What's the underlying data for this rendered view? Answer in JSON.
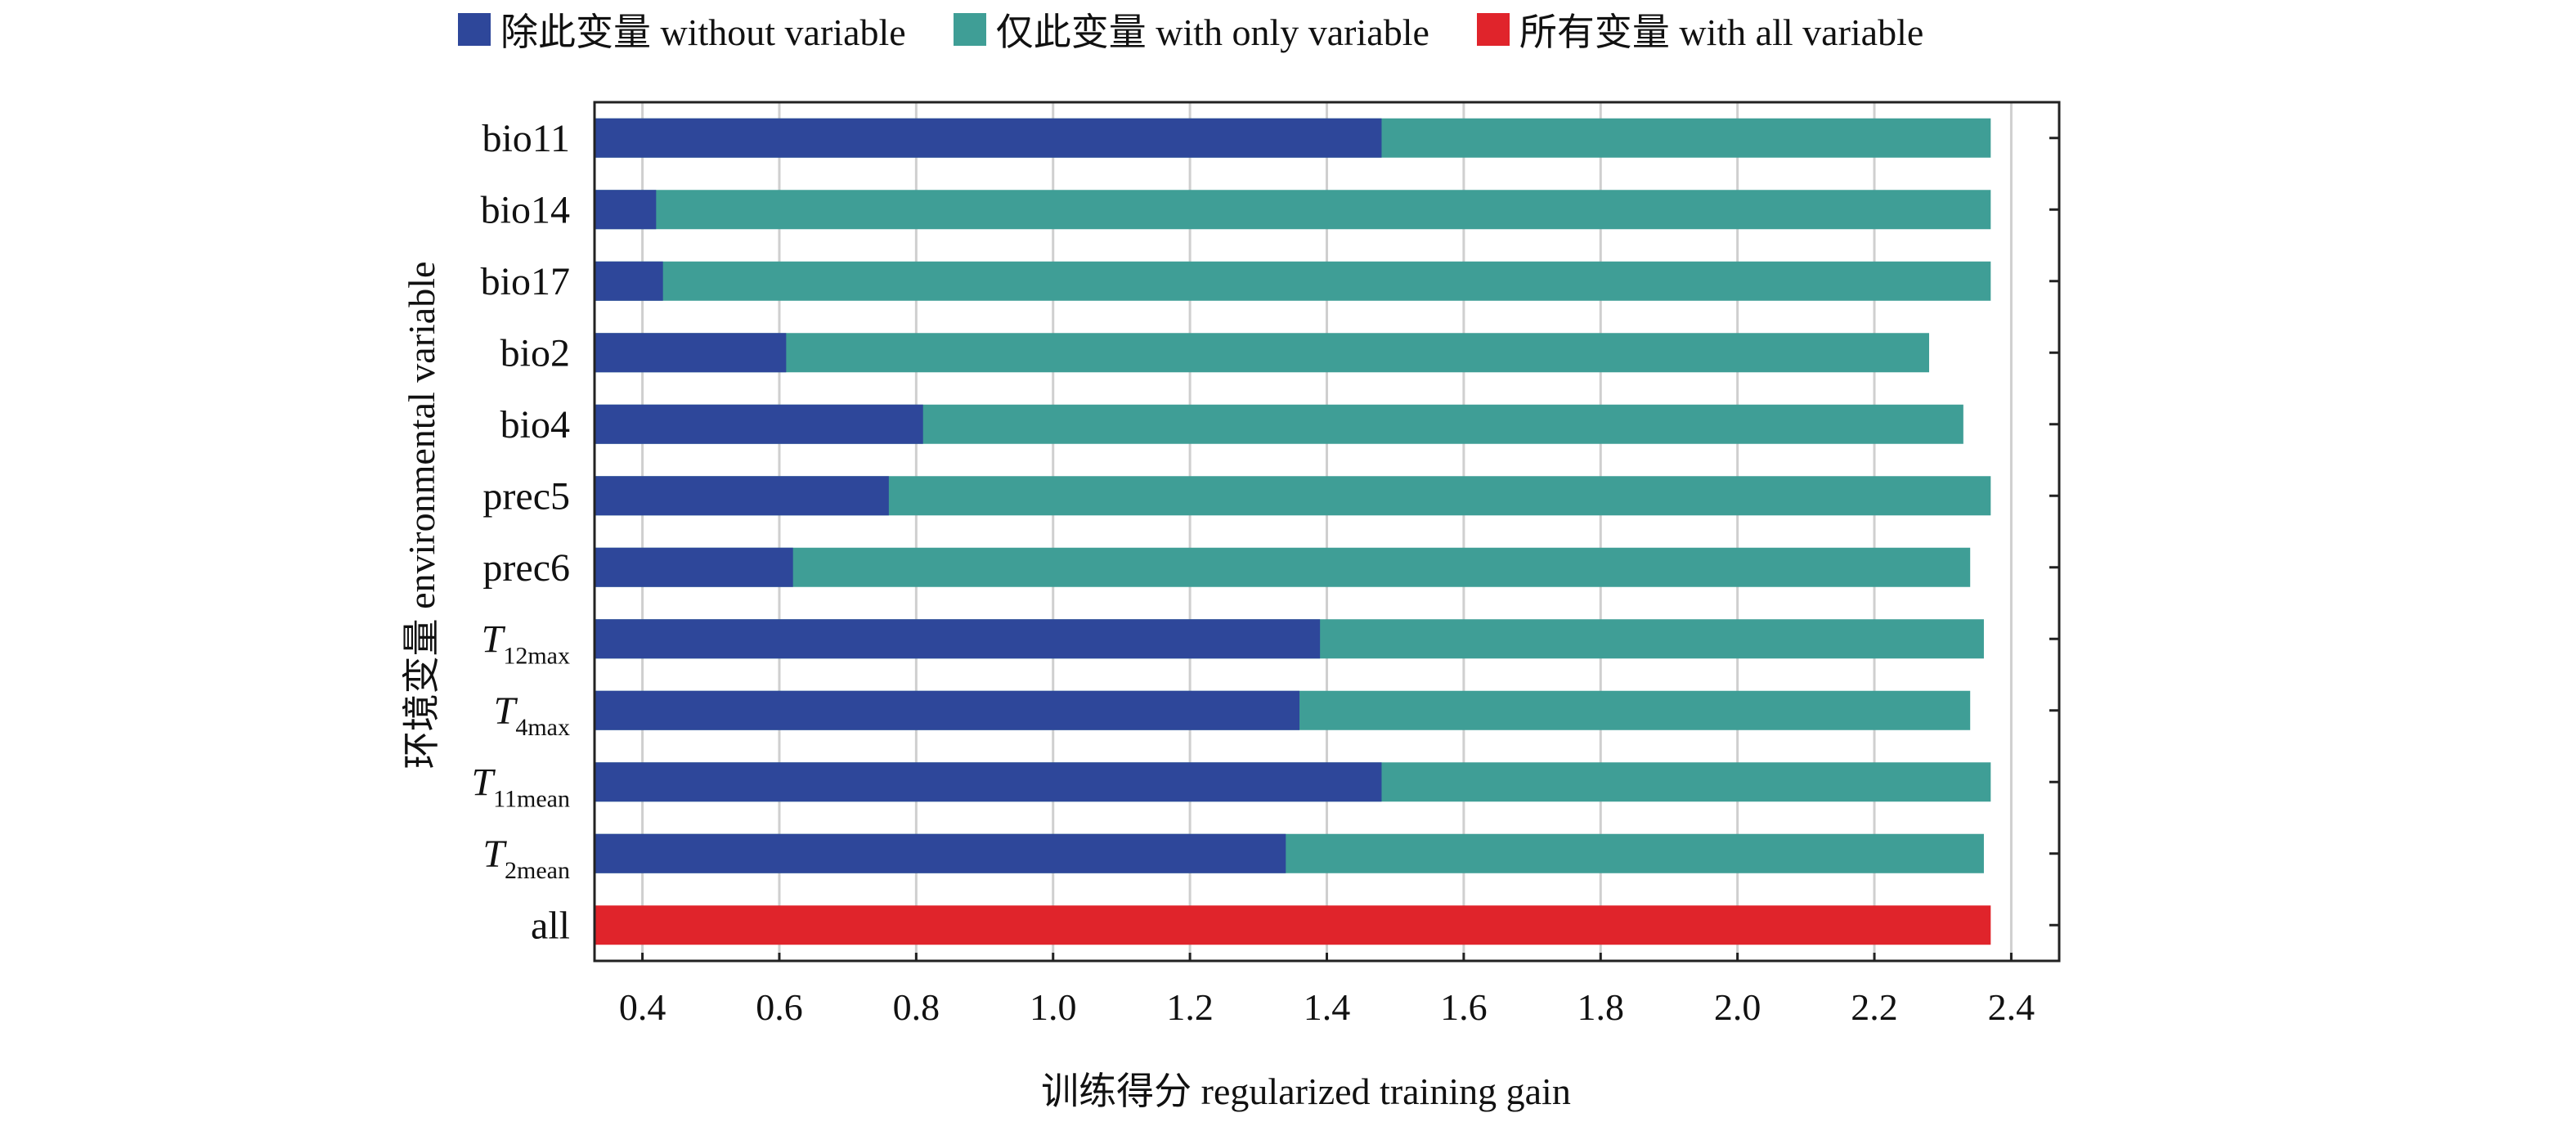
{
  "chart_data": {
    "type": "bar",
    "orientation": "horizontal",
    "stacked": false,
    "categories": [
      "bio11",
      "bio14",
      "bio17",
      "bio2",
      "bio4",
      "prec5",
      "prec6",
      "T12max",
      "T4max",
      "T11mean",
      "T2mean",
      "all"
    ],
    "category_labels": [
      {
        "main": "bio11",
        "sub": ""
      },
      {
        "main": "bio14",
        "sub": ""
      },
      {
        "main": "bio17",
        "sub": ""
      },
      {
        "main": "bio2",
        "sub": ""
      },
      {
        "main": "bio4",
        "sub": ""
      },
      {
        "main": "prec5",
        "sub": ""
      },
      {
        "main": "prec6",
        "sub": ""
      },
      {
        "main": "T",
        "sub": "12max"
      },
      {
        "main": "T",
        "sub": "4max"
      },
      {
        "main": "T",
        "sub": "11mean"
      },
      {
        "main": "T",
        "sub": "2mean"
      },
      {
        "main": "all",
        "sub": ""
      }
    ],
    "series": [
      {
        "name": "除此变量 without variable",
        "color": "#2e479a",
        "values": [
          1.48,
          0.42,
          0.43,
          0.61,
          0.81,
          0.76,
          0.62,
          1.39,
          1.36,
          1.48,
          1.34,
          null
        ]
      },
      {
        "name": "仅此变量 with only variable",
        "color": "#3f9e96",
        "values": [
          2.37,
          2.37,
          2.37,
          2.28,
          2.33,
          2.37,
          2.34,
          2.36,
          2.34,
          2.37,
          2.36,
          null
        ]
      },
      {
        "name": "所有变量 with all variable",
        "color": "#e0242b",
        "values": [
          null,
          null,
          null,
          null,
          null,
          null,
          null,
          null,
          null,
          null,
          null,
          2.37
        ]
      }
    ],
    "xlabel": "训练得分 regularized training gain",
    "ylabel": "环境变量 environmental variable",
    "xlim": [
      0.33,
      2.47
    ],
    "xticks": [
      "0.4",
      "0.6",
      "0.8",
      "1.0",
      "1.2",
      "1.4",
      "1.6",
      "1.8",
      "2.0",
      "2.2",
      "2.4"
    ],
    "grid": true,
    "legend": "top"
  }
}
